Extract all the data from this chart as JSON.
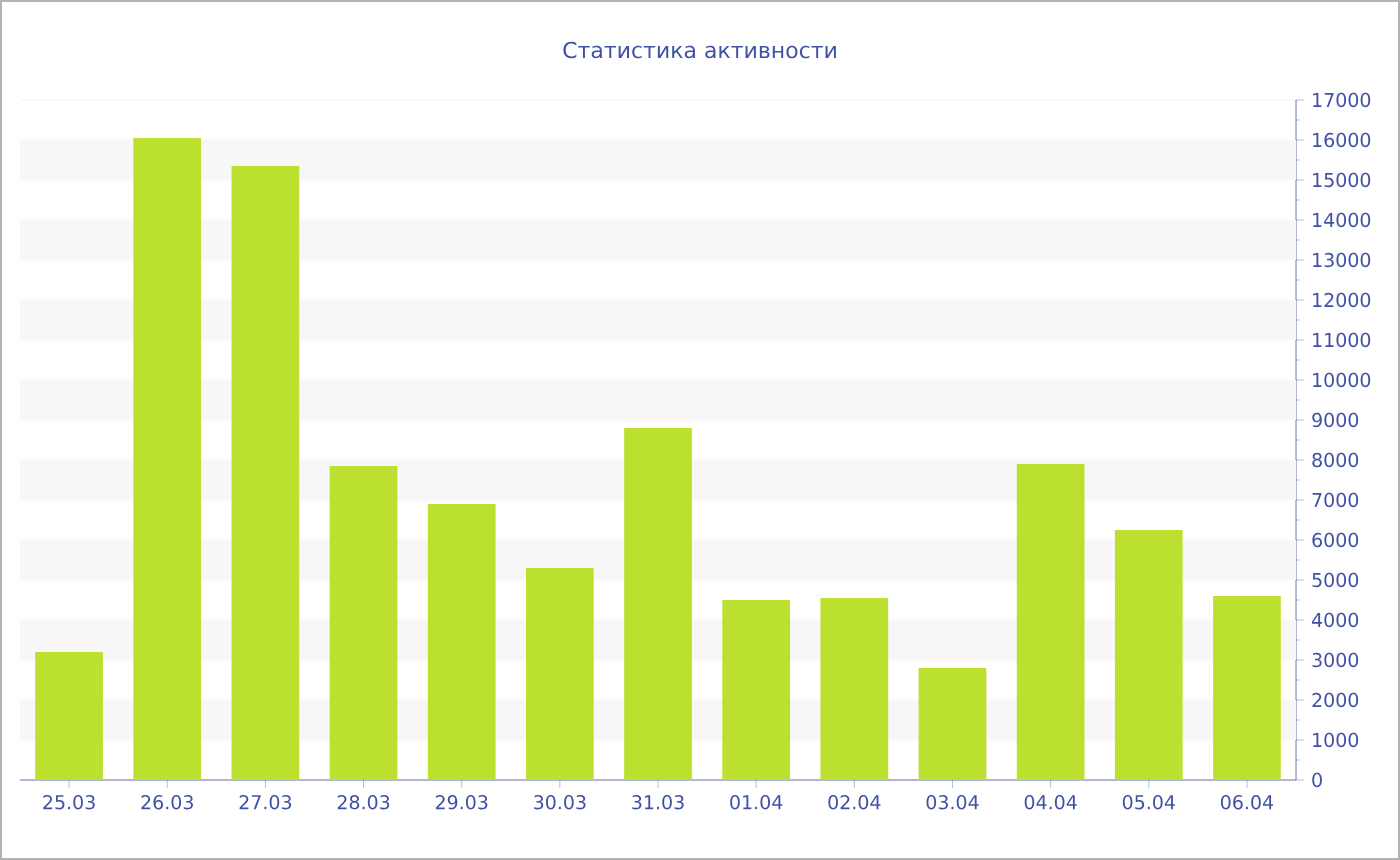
{
  "chart_data": {
    "type": "bar",
    "title": "Статистика активности",
    "categories": [
      "25.03",
      "26.03",
      "27.03",
      "28.03",
      "29.03",
      "30.03",
      "31.03",
      "01.04",
      "02.04",
      "03.04",
      "04.04",
      "05.04",
      "06.04"
    ],
    "values": [
      3200,
      16050,
      15350,
      7850,
      6900,
      5300,
      8800,
      4500,
      4550,
      2800,
      7900,
      6250,
      4600
    ],
    "color": "#bce02f",
    "ylim": [
      0,
      17000
    ],
    "yticks": [
      0,
      1000,
      2000,
      3000,
      4000,
      5000,
      6000,
      7000,
      8000,
      9000,
      10000,
      11000,
      12000,
      13000,
      14000,
      15000,
      16000,
      17000
    ],
    "grid": "y"
  }
}
